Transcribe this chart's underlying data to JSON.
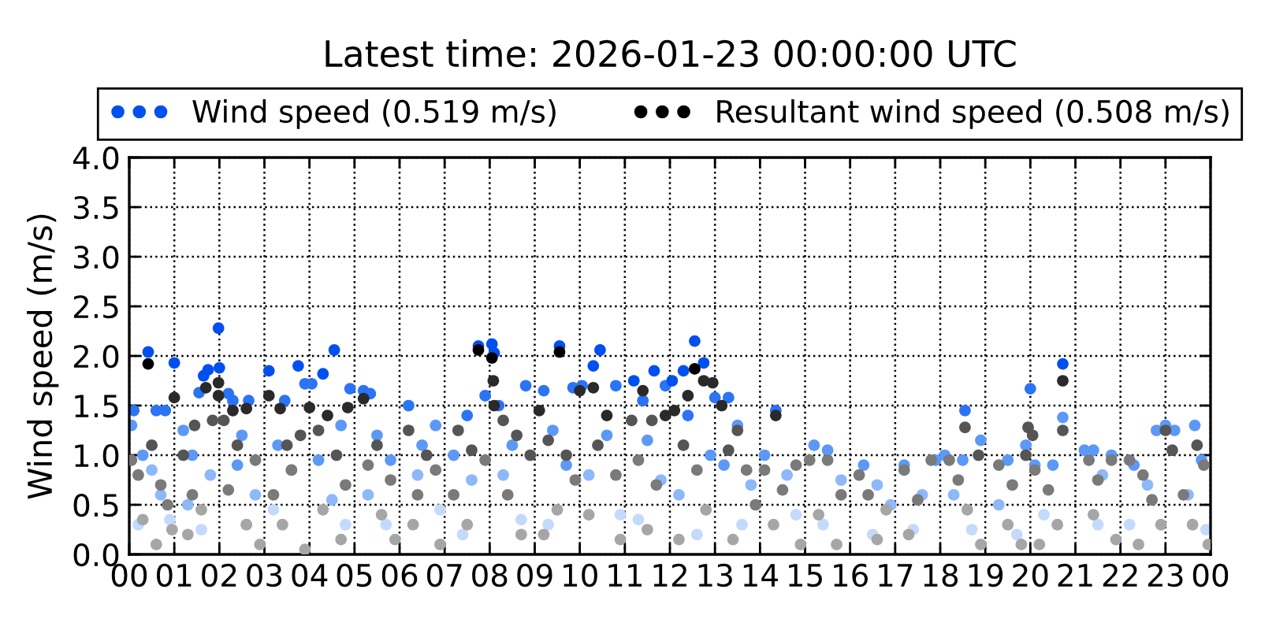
{
  "chart_data": {
    "type": "scatter",
    "title": "Latest time: 2026-01-23 00:00:00 UTC",
    "ylabel": "Wind speed (m/s)",
    "xlim": [
      0,
      24
    ],
    "xticks": [
      {
        "value": 0,
        "label": "00"
      },
      {
        "value": 1,
        "label": "01"
      },
      {
        "value": 2,
        "label": "02"
      },
      {
        "value": 3,
        "label": "03"
      },
      {
        "value": 4,
        "label": "04"
      },
      {
        "value": 5,
        "label": "05"
      },
      {
        "value": 6,
        "label": "06"
      },
      {
        "value": 7,
        "label": "07"
      },
      {
        "value": 8,
        "label": "08"
      },
      {
        "value": 9,
        "label": "09"
      },
      {
        "value": 10,
        "label": "10"
      },
      {
        "value": 11,
        "label": "11"
      },
      {
        "value": 12,
        "label": "12"
      },
      {
        "value": 13,
        "label": "13"
      },
      {
        "value": 14,
        "label": "14"
      },
      {
        "value": 15,
        "label": "15"
      },
      {
        "value": 16,
        "label": "16"
      },
      {
        "value": 17,
        "label": "17"
      },
      {
        "value": 18,
        "label": "18"
      },
      {
        "value": 19,
        "label": "19"
      },
      {
        "value": 20,
        "label": "20"
      },
      {
        "value": 21,
        "label": "21"
      },
      {
        "value": 22,
        "label": "22"
      },
      {
        "value": 23,
        "label": "23"
      },
      {
        "value": 24,
        "label": "00"
      }
    ],
    "ylim": [
      0,
      4
    ],
    "yticks": [
      {
        "value": 0,
        "label": "0.0"
      },
      0.5,
      {
        "value": 1,
        "label": "1.0"
      },
      1.5,
      {
        "value": 2,
        "label": "2.0"
      },
      2.5,
      {
        "value": 3,
        "label": "3.0"
      },
      3.5,
      {
        "value": 4,
        "label": "4.0"
      }
    ],
    "grid": true,
    "legend": "top",
    "marker": "circle",
    "series": [
      {
        "name": "Wind speed (0.519 m/s)",
        "color": "#0050f0",
        "x": [
          0.05,
          0.1,
          0.42,
          0.6,
          0.8,
          1.0,
          0.3,
          0.5,
          0.7,
          0.2,
          0.9,
          1.2,
          1.55,
          1.65,
          1.75,
          1.98,
          2.0,
          1.4,
          1.8,
          1.3,
          1.6,
          2.2,
          2.3,
          2.65,
          2.5,
          2.4,
          2.8,
          2.6,
          3.1,
          3.45,
          3.75,
          3.9,
          3.3,
          3.6,
          3.2,
          4.05,
          4.3,
          4.55,
          4.9,
          4.7,
          4.2,
          4.5,
          4.8,
          5.2,
          5.35,
          5.5,
          5.8,
          5.3,
          5.7,
          6.2,
          6.5,
          6.8,
          6.4,
          6.9,
          7.5,
          7.75,
          7.9,
          7.2,
          7.6,
          7.4,
          8.05,
          8.1,
          8.2,
          8.8,
          8.5,
          8.3,
          8.7,
          9.2,
          9.55,
          9.85,
          9.4,
          9.7,
          9.3,
          10.05,
          10.3,
          10.45,
          10.8,
          10.6,
          10.2,
          10.9,
          11.2,
          11.4,
          11.65,
          11.9,
          11.5,
          11.8,
          11.3,
          12.05,
          12.3,
          12.55,
          12.75,
          12.4,
          12.9,
          12.2,
          12.6,
          13.0,
          13.3,
          13.5,
          13.2,
          13.8,
          13.6,
          14.35,
          14.1,
          14.6,
          14.8,
          15.2,
          15.5,
          15.8,
          15.4,
          16.3,
          16.6,
          16.9,
          16.5,
          17.2,
          17.6,
          17.9,
          17.4,
          18.1,
          18.55,
          18.5,
          18.9,
          18.3,
          18.7,
          19.5,
          19.9,
          19.3,
          19.7,
          20.0,
          20.1,
          20.5,
          20.72,
          20.72,
          20.3,
          21.2,
          21.4,
          21.6,
          21.8,
          21.5,
          22.3,
          22.6,
          22.8,
          22.2,
          23.0,
          23.2,
          23.65,
          23.8,
          23.5,
          23.9
        ],
        "values": [
          1.3,
          1.45,
          2.04,
          1.45,
          1.45,
          1.93,
          1.0,
          0.85,
          0.6,
          0.3,
          0.35,
          1.25,
          1.63,
          1.8,
          1.86,
          2.28,
          1.88,
          1.0,
          0.8,
          0.5,
          0.25,
          1.62,
          1.55,
          1.55,
          1.2,
          0.9,
          0.6,
          0.3,
          1.85,
          1.55,
          1.9,
          1.72,
          1.1,
          0.85,
          0.45,
          1.72,
          1.82,
          2.06,
          1.67,
          1.3,
          0.95,
          0.55,
          0.3,
          1.65,
          1.62,
          1.2,
          0.95,
          0.6,
          0.3,
          1.5,
          1.1,
          1.3,
          0.8,
          0.45,
          1.4,
          2.1,
          1.6,
          1.0,
          0.75,
          0.2,
          2.12,
          2.03,
          1.5,
          1.7,
          1.1,
          0.8,
          0.35,
          1.65,
          2.1,
          1.68,
          1.25,
          0.9,
          0.3,
          1.7,
          1.9,
          2.06,
          1.7,
          1.2,
          0.8,
          0.4,
          1.75,
          1.55,
          1.85,
          1.7,
          1.15,
          0.75,
          0.35,
          1.75,
          1.85,
          2.15,
          1.93,
          1.4,
          1.0,
          0.6,
          0.2,
          1.58,
          1.58,
          1.3,
          0.9,
          0.7,
          0.3,
          1.45,
          1.0,
          0.8,
          0.4,
          1.1,
          1.05,
          0.75,
          0.3,
          0.9,
          0.7,
          0.5,
          0.2,
          0.9,
          0.6,
          0.95,
          0.25,
          1.0,
          1.45,
          0.95,
          1.15,
          0.6,
          0.25,
          0.95,
          1.1,
          0.5,
          0.2,
          1.67,
          0.9,
          0.9,
          1.92,
          1.38,
          0.4,
          1.05,
          1.05,
          0.8,
          1.0,
          0.3,
          0.9,
          0.7,
          1.25,
          0.3,
          1.3,
          1.25,
          1.3,
          0.95,
          0.6,
          0.25
        ],
        "colors": [
          "#5c98f7",
          "#2a74f5",
          "#0050f0",
          "#2a74f5",
          "#2a74f5",
          "#0050f0",
          "#5c98f7",
          "#8db8fa",
          "#8db8fa",
          "#c4dafc",
          "#c4dafc",
          "#5c98f7",
          "#2a74f5",
          "#0050f0",
          "#0050f0",
          "#0050f0",
          "#0050f0",
          "#5c98f7",
          "#8db8fa",
          "#8db8fa",
          "#c4dafc",
          "#2a74f5",
          "#2a74f5",
          "#2a74f5",
          "#5c98f7",
          "#5c98f7",
          "#8db8fa",
          "#c4dafc",
          "#0050f0",
          "#2a74f5",
          "#0050f0",
          "#2a74f5",
          "#5c98f7",
          "#8db8fa",
          "#c4dafc",
          "#2a74f5",
          "#0050f0",
          "#0050f0",
          "#2a74f5",
          "#5c98f7",
          "#5c98f7",
          "#8db8fa",
          "#c4dafc",
          "#2a74f5",
          "#2a74f5",
          "#5c98f7",
          "#5c98f7",
          "#8db8fa",
          "#c4dafc",
          "#2a74f5",
          "#5c98f7",
          "#5c98f7",
          "#8db8fa",
          "#c4dafc",
          "#2a74f5",
          "#0050f0",
          "#2a74f5",
          "#5c98f7",
          "#8db8fa",
          "#c4dafc",
          "#0050f0",
          "#0050f0",
          "#2a74f5",
          "#2a74f5",
          "#5c98f7",
          "#8db8fa",
          "#c4dafc",
          "#2a74f5",
          "#0050f0",
          "#2a74f5",
          "#5c98f7",
          "#5c98f7",
          "#c4dafc",
          "#2a74f5",
          "#0050f0",
          "#0050f0",
          "#2a74f5",
          "#5c98f7",
          "#8db8fa",
          "#c4dafc",
          "#0050f0",
          "#2a74f5",
          "#0050f0",
          "#2a74f5",
          "#5c98f7",
          "#8db8fa",
          "#c4dafc",
          "#0050f0",
          "#0050f0",
          "#0050f0",
          "#0050f0",
          "#2a74f5",
          "#5c98f7",
          "#8db8fa",
          "#c4dafc",
          "#2a74f5",
          "#2a74f5",
          "#5c98f7",
          "#5c98f7",
          "#8db8fa",
          "#c4dafc",
          "#2a74f5",
          "#5c98f7",
          "#8db8fa",
          "#c4dafc",
          "#5c98f7",
          "#5c98f7",
          "#8db8fa",
          "#c4dafc",
          "#5c98f7",
          "#8db8fa",
          "#8db8fa",
          "#c4dafc",
          "#5c98f7",
          "#8db8fa",
          "#5c98f7",
          "#c4dafc",
          "#5c98f7",
          "#2a74f5",
          "#5c98f7",
          "#5c98f7",
          "#8db8fa",
          "#c4dafc",
          "#5c98f7",
          "#5c98f7",
          "#8db8fa",
          "#c4dafc",
          "#2a74f5",
          "#5c98f7",
          "#5c98f7",
          "#0050f0",
          "#5c98f7",
          "#c4dafc",
          "#5c98f7",
          "#5c98f7",
          "#8db8fa",
          "#5c98f7",
          "#c4dafc",
          "#5c98f7",
          "#8db8fa",
          "#5c98f7",
          "#c4dafc",
          "#5c98f7",
          "#5c98f7",
          "#5c98f7",
          "#5c98f7",
          "#8db8fa",
          "#c4dafc"
        ]
      },
      {
        "name": "Resultant wind speed (0.508 m/s)",
        "color": "#000000",
        "x": [
          0.05,
          0.2,
          0.42,
          0.5,
          0.7,
          0.85,
          1.0,
          0.3,
          0.6,
          0.95,
          1.2,
          1.45,
          1.7,
          1.85,
          1.98,
          1.98,
          1.4,
          1.6,
          1.3,
          2.1,
          2.3,
          2.6,
          2.4,
          2.8,
          2.2,
          2.6,
          2.9,
          3.1,
          3.35,
          3.5,
          3.8,
          3.6,
          3.2,
          3.4,
          3.9,
          4.0,
          4.4,
          4.85,
          4.2,
          4.6,
          4.8,
          4.3,
          4.7,
          5.2,
          5.5,
          5.3,
          5.8,
          5.6,
          5.9,
          6.2,
          6.6,
          6.8,
          6.4,
          6.3,
          6.9,
          7.3,
          7.75,
          7.6,
          7.9,
          7.2,
          7.5,
          8.05,
          8.08,
          8.1,
          8.3,
          8.6,
          8.9,
          8.4,
          8.7,
          9.1,
          9.55,
          9.3,
          9.7,
          9.9,
          9.5,
          9.2,
          10.0,
          10.3,
          10.6,
          10.4,
          10.8,
          10.2,
          10.9,
          11.15,
          11.4,
          11.6,
          11.9,
          11.3,
          11.7,
          11.5,
          12.1,
          12.4,
          12.55,
          12.75,
          12.95,
          12.3,
          12.6,
          12.8,
          12.2,
          13.15,
          13.5,
          13.3,
          13.7,
          13.9,
          13.4,
          14.35,
          14.1,
          14.5,
          14.8,
          14.3,
          14.9,
          15.1,
          15.5,
          15.8,
          15.3,
          15.7,
          16.2,
          16.4,
          16.8,
          16.6,
          17.2,
          17.5,
          17.8,
          17.3,
          18.2,
          18.55,
          18.4,
          18.85,
          18.6,
          18.9,
          19.3,
          19.6,
          19.9,
          19.95,
          19.5,
          19.8,
          20.05,
          20.1,
          20.4,
          20.72,
          20.72,
          20.6,
          20.2,
          21.3,
          21.5,
          21.8,
          21.4,
          21.9,
          22.2,
          22.5,
          22.7,
          22.9,
          22.4,
          23.0,
          23.15,
          23.7,
          23.85,
          23.4,
          23.6,
          23.95
        ],
        "values": [
          0.95,
          0.8,
          1.92,
          1.1,
          0.7,
          0.5,
          1.58,
          0.35,
          0.1,
          0.25,
          1.0,
          1.3,
          1.68,
          1.35,
          1.73,
          1.6,
          0.6,
          0.45,
          0.2,
          1.35,
          1.45,
          1.47,
          1.1,
          0.95,
          0.65,
          0.3,
          0.1,
          1.6,
          1.47,
          1.1,
          1.2,
          0.85,
          0.6,
          0.3,
          0.05,
          1.48,
          1.4,
          1.48,
          1.25,
          1.0,
          0.7,
          0.45,
          0.15,
          1.57,
          1.1,
          0.9,
          0.75,
          0.4,
          0.15,
          1.25,
          1.0,
          0.85,
          0.6,
          0.3,
          0.1,
          1.25,
          2.06,
          1.05,
          0.95,
          0.6,
          0.3,
          1.98,
          1.75,
          1.5,
          1.35,
          1.2,
          1.0,
          0.6,
          0.2,
          1.45,
          2.04,
          1.15,
          1.0,
          0.75,
          0.45,
          0.2,
          1.65,
          1.68,
          1.4,
          1.1,
          0.8,
          0.4,
          0.15,
          1.35,
          1.65,
          1.35,
          1.4,
          0.95,
          0.7,
          0.25,
          1.45,
          1.6,
          1.87,
          1.75,
          1.73,
          1.1,
          0.85,
          0.45,
          0.15,
          1.5,
          1.25,
          1.05,
          0.85,
          0.5,
          0.15,
          1.4,
          0.85,
          0.65,
          0.9,
          0.3,
          0.1,
          0.95,
          0.95,
          0.6,
          0.4,
          0.1,
          0.8,
          0.6,
          0.45,
          0.15,
          0.85,
          0.55,
          0.95,
          0.2,
          0.95,
          1.28,
          0.75,
          1.0,
          0.45,
          0.1,
          0.9,
          0.7,
          1.0,
          1.28,
          0.3,
          0.1,
          1.2,
          0.85,
          0.65,
          1.75,
          1.25,
          0.3,
          0.1,
          0.95,
          0.75,
          0.95,
          0.4,
          0.15,
          0.95,
          0.8,
          0.55,
          0.3,
          0.1,
          1.25,
          1.05,
          1.1,
          0.9,
          0.6,
          0.3,
          0.1
        ],
        "colors": [
          "#7a7a7a",
          "#7a7a7a",
          "#000000",
          "#555555",
          "#7a7a7a",
          "#7a7a7a",
          "#2a2a2a",
          "#a6a6a6",
          "#a6a6a6",
          "#a6a6a6",
          "#555555",
          "#555555",
          "#2a2a2a",
          "#555555",
          "#2a2a2a",
          "#2a2a2a",
          "#7a7a7a",
          "#a6a6a6",
          "#a6a6a6",
          "#555555",
          "#2a2a2a",
          "#2a2a2a",
          "#555555",
          "#7a7a7a",
          "#7a7a7a",
          "#a6a6a6",
          "#a6a6a6",
          "#2a2a2a",
          "#2a2a2a",
          "#555555",
          "#555555",
          "#7a7a7a",
          "#7a7a7a",
          "#a6a6a6",
          "#a6a6a6",
          "#2a2a2a",
          "#2a2a2a",
          "#2a2a2a",
          "#555555",
          "#555555",
          "#7a7a7a",
          "#a6a6a6",
          "#a6a6a6",
          "#2a2a2a",
          "#555555",
          "#7a7a7a",
          "#7a7a7a",
          "#a6a6a6",
          "#a6a6a6",
          "#555555",
          "#555555",
          "#7a7a7a",
          "#7a7a7a",
          "#a6a6a6",
          "#a6a6a6",
          "#555555",
          "#000000",
          "#555555",
          "#7a7a7a",
          "#7a7a7a",
          "#a6a6a6",
          "#000000",
          "#2a2a2a",
          "#2a2a2a",
          "#555555",
          "#555555",
          "#555555",
          "#7a7a7a",
          "#a6a6a6",
          "#2a2a2a",
          "#000000",
          "#555555",
          "#555555",
          "#7a7a7a",
          "#a6a6a6",
          "#a6a6a6",
          "#2a2a2a",
          "#2a2a2a",
          "#2a2a2a",
          "#555555",
          "#7a7a7a",
          "#a6a6a6",
          "#a6a6a6",
          "#555555",
          "#2a2a2a",
          "#555555",
          "#2a2a2a",
          "#7a7a7a",
          "#7a7a7a",
          "#a6a6a6",
          "#2a2a2a",
          "#2a2a2a",
          "#000000",
          "#2a2a2a",
          "#2a2a2a",
          "#555555",
          "#7a7a7a",
          "#a6a6a6",
          "#a6a6a6",
          "#2a2a2a",
          "#555555",
          "#555555",
          "#7a7a7a",
          "#7a7a7a",
          "#a6a6a6",
          "#2a2a2a",
          "#7a7a7a",
          "#7a7a7a",
          "#7a7a7a",
          "#a6a6a6",
          "#a6a6a6",
          "#7a7a7a",
          "#7a7a7a",
          "#7a7a7a",
          "#a6a6a6",
          "#a6a6a6",
          "#7a7a7a",
          "#7a7a7a",
          "#a6a6a6",
          "#a6a6a6",
          "#7a7a7a",
          "#7a7a7a",
          "#7a7a7a",
          "#a6a6a6",
          "#7a7a7a",
          "#555555",
          "#7a7a7a",
          "#555555",
          "#a6a6a6",
          "#a6a6a6",
          "#7a7a7a",
          "#7a7a7a",
          "#555555",
          "#555555",
          "#a6a6a6",
          "#a6a6a6",
          "#555555",
          "#7a7a7a",
          "#7a7a7a",
          "#2a2a2a",
          "#555555",
          "#a6a6a6",
          "#a6a6a6",
          "#7a7a7a",
          "#7a7a7a",
          "#7a7a7a",
          "#a6a6a6",
          "#a6a6a6",
          "#7a7a7a",
          "#7a7a7a",
          "#7a7a7a",
          "#a6a6a6",
          "#a6a6a6",
          "#555555",
          "#555555",
          "#555555",
          "#7a7a7a",
          "#7a7a7a",
          "#a6a6a6",
          "#a6a6a6"
        ]
      }
    ]
  }
}
